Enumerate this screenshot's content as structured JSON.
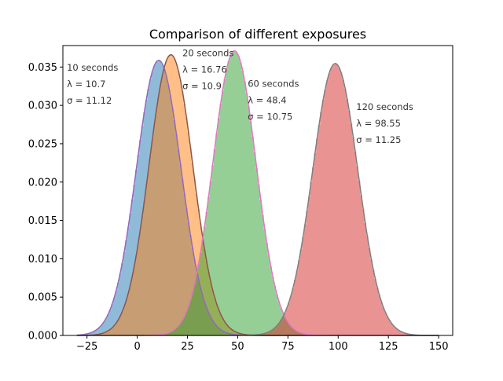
{
  "chart_data": {
    "type": "area",
    "title": "Comparison of different exposures",
    "xlabel": "",
    "ylabel": "",
    "xlim": [
      -37,
      157
    ],
    "ylim": [
      0,
      0.0378
    ],
    "x_ticks": [
      -25,
      0,
      25,
      50,
      75,
      100,
      125,
      150
    ],
    "x_tick_labels": [
      "−25",
      "0",
      "25",
      "50",
      "75",
      "100",
      "125",
      "150"
    ],
    "y_ticks": [
      0,
      0.005,
      0.01,
      0.015,
      0.02,
      0.025,
      0.03,
      0.035
    ],
    "y_tick_labels": [
      "0.000",
      "0.005",
      "0.010",
      "0.015",
      "0.020",
      "0.025",
      "0.030",
      "0.035"
    ],
    "grid": false,
    "x_range": [
      -30,
      150
    ],
    "series": [
      {
        "exposure": "10 seconds",
        "lambda_text": "λ = 10.7",
        "sigma_text": "σ = 11.12",
        "lambda": 10.7,
        "sigma": 11.12,
        "fill_color": "#1f77b4",
        "line_color": "#9467bd"
      },
      {
        "exposure": "20 seconds",
        "lambda_text": "λ = 16.76",
        "sigma_text": "σ = 10.9",
        "lambda": 16.76,
        "sigma": 10.9,
        "fill_color": "#ff7f0e",
        "line_color": "#8c564b"
      },
      {
        "exposure": "60 seconds",
        "lambda_text": "λ = 48.4",
        "sigma_text": "σ = 10.75",
        "lambda": 48.4,
        "sigma": 10.75,
        "fill_color": "#2ca02c",
        "line_color": "#e377c2"
      },
      {
        "exposure": "120 seconds",
        "lambda_text": "λ = 98.55",
        "sigma_text": "σ = 11.25",
        "lambda": 98.55,
        "sigma": 11.25,
        "fill_color": "#d62728",
        "line_color": "#7f7f7f"
      }
    ],
    "annotations": [
      {
        "lines": [
          "10 seconds",
          "λ = 10.7",
          "σ = 11.12"
        ],
        "x": -35,
        "y": 0.0345
      },
      {
        "lines": [
          "20 seconds",
          "λ = 16.76",
          "σ = 10.9"
        ],
        "x": 22.5,
        "y": 0.0364
      },
      {
        "lines": [
          "60 seconds",
          "λ = 48.4",
          "σ = 10.75"
        ],
        "x": 55,
        "y": 0.0324
      },
      {
        "lines": [
          "120 seconds",
          "λ = 98.55",
          "σ = 11.25"
        ],
        "x": 109,
        "y": 0.0294
      }
    ]
  }
}
